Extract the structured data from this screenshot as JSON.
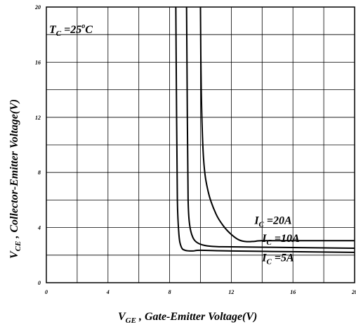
{
  "chart_data": {
    "type": "line",
    "title": "",
    "xlabel": {
      "main": "V",
      "sub": "GE",
      "rest": " , Gate-Emitter Voltage(V)"
    },
    "ylabel": {
      "main": "V",
      "sub": "CE",
      "rest": " ,  Collector-Emitter Voltage(V)"
    },
    "xlim": [
      0,
      20
    ],
    "ylim": [
      0,
      20
    ],
    "x_ticks": [
      0,
      4,
      8,
      12,
      16,
      20
    ],
    "x_tick_labels": [
      "0",
      "4",
      "8",
      "12",
      "16",
      "20"
    ],
    "y_ticks": [
      0,
      4,
      8,
      12,
      16,
      20
    ],
    "y_tick_labels": [
      "0",
      "4",
      "8",
      "12",
      "16",
      "20"
    ],
    "grid": true,
    "grid_x_step": 2,
    "grid_y_step": 2,
    "annotation": {
      "main": "T",
      "sub": "C",
      "mid": " =25",
      "sup": "o",
      "rest": "C"
    },
    "series": [
      {
        "name": "I C=5A",
        "label": {
          "main": "I",
          "sub": "C",
          "rest": " =5A"
        },
        "points": [
          [
            8.4,
            20
          ],
          [
            8.45,
            12
          ],
          [
            8.5,
            6
          ],
          [
            8.6,
            3.5
          ],
          [
            8.75,
            2.6
          ],
          [
            9.0,
            2.35
          ],
          [
            9.5,
            2.3
          ],
          [
            10,
            2.35
          ],
          [
            12,
            2.3
          ],
          [
            16,
            2.25
          ],
          [
            20,
            2.2
          ]
        ]
      },
      {
        "name": "I C=10A",
        "label": {
          "main": "I",
          "sub": "C",
          "rest": " =10A"
        },
        "points": [
          [
            9.1,
            20
          ],
          [
            9.15,
            12
          ],
          [
            9.2,
            6
          ],
          [
            9.3,
            4.2
          ],
          [
            9.5,
            3.3
          ],
          [
            9.8,
            2.9
          ],
          [
            10.3,
            2.7
          ],
          [
            11,
            2.62
          ],
          [
            12,
            2.6
          ],
          [
            16,
            2.55
          ],
          [
            20,
            2.5
          ]
        ]
      },
      {
        "name": "I C=20A",
        "label": {
          "main": "I",
          "sub": "C",
          "rest": " =20A"
        },
        "points": [
          [
            10,
            20
          ],
          [
            10.05,
            14
          ],
          [
            10.2,
            9
          ],
          [
            10.5,
            6.6
          ],
          [
            11,
            5
          ],
          [
            11.5,
            4.1
          ],
          [
            12,
            3.5
          ],
          [
            12.5,
            3.1
          ],
          [
            13,
            2.98
          ],
          [
            13.5,
            3.0
          ],
          [
            14,
            3.05
          ],
          [
            16,
            3.05
          ],
          [
            20,
            3.05
          ]
        ]
      }
    ]
  }
}
